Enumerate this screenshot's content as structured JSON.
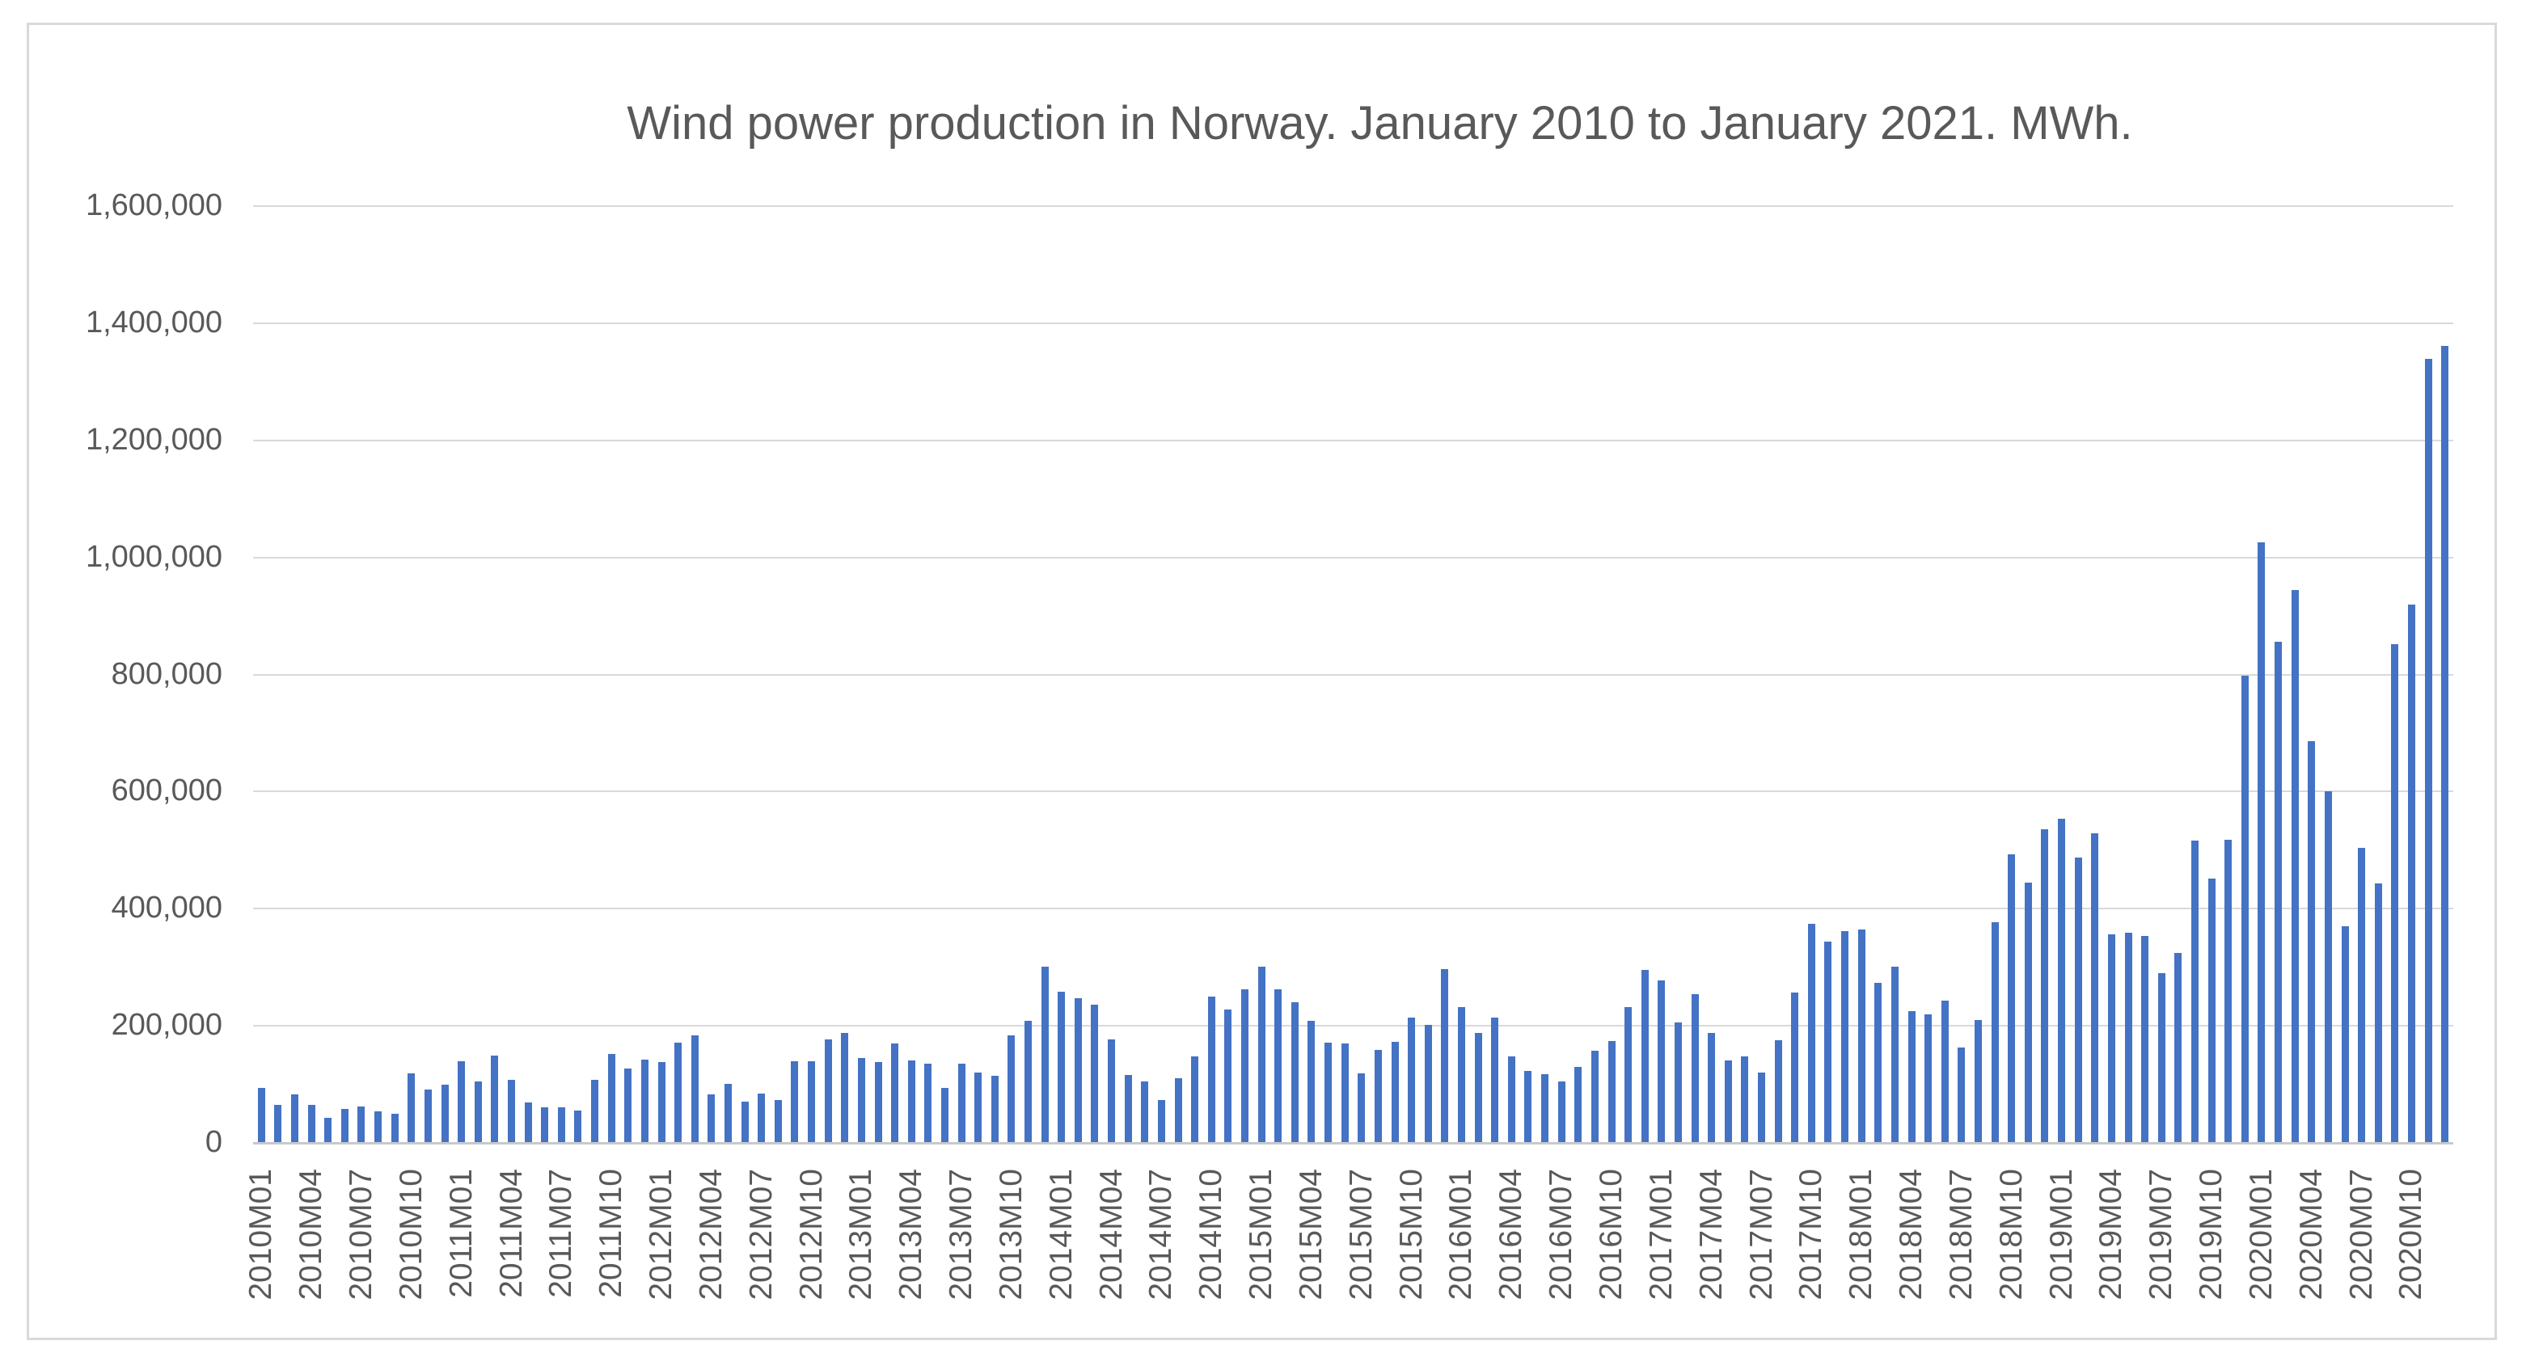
{
  "chart": {
    "title": "Wind power production in Norway. January 2010 to January 2021. MWh."
  },
  "chart_data": {
    "type": "bar",
    "title": "Wind power production in Norway. January 2010 to January 2021. MWh.",
    "xlabel": "",
    "ylabel": "",
    "unit": "MWh",
    "ylim": [
      0,
      1600000
    ],
    "y_tick_step": 200000,
    "grid": "horizontal",
    "legend": "none",
    "bar_color": "#4472C4",
    "gridline_color": "#D9D9D9",
    "axis_line_color": "#C9C9C9",
    "axis_text_color": "#595959",
    "frame_border_color": "#D9D9D9",
    "background_color": "#FFFFFF",
    "y_tick_labels": [
      "1,600,000",
      "1,400,000",
      "1,200,000",
      "1,000,000",
      "800,000",
      "600,000",
      "400,000",
      "200,000",
      "0"
    ],
    "x_tick_labels": [
      "2010M01",
      "2010M04",
      "2010M07",
      "2010M10",
      "2011M01",
      "2011M04",
      "2011M07",
      "2011M10",
      "2012M01",
      "2012M04",
      "2012M07",
      "2012M10",
      "2013M01",
      "2013M04",
      "2013M07",
      "2013M10",
      "2014M01",
      "2014M04",
      "2014M07",
      "2014M10",
      "2015M01",
      "2015M04",
      "2015M07",
      "2015M10",
      "2016M01",
      "2016M04",
      "2016M07",
      "2016M10",
      "2017M01",
      "2017M04",
      "2017M07",
      "2017M10",
      "2018M01",
      "2018M04",
      "2018M07",
      "2018M10",
      "2019M01",
      "2019M04",
      "2019M07",
      "2019M10",
      "2020M01",
      "2020M04",
      "2020M07",
      "2020M10"
    ],
    "x_tick_every": 3,
    "categories": [
      "2010M01",
      "2010M02",
      "2010M03",
      "2010M04",
      "2010M05",
      "2010M06",
      "2010M07",
      "2010M08",
      "2010M09",
      "2010M10",
      "2010M11",
      "2010M12",
      "2011M01",
      "2011M02",
      "2011M03",
      "2011M04",
      "2011M05",
      "2011M06",
      "2011M07",
      "2011M08",
      "2011M09",
      "2011M10",
      "2011M11",
      "2011M12",
      "2012M01",
      "2012M02",
      "2012M03",
      "2012M04",
      "2012M05",
      "2012M06",
      "2012M07",
      "2012M08",
      "2012M09",
      "2012M10",
      "2012M11",
      "2012M12",
      "2013M01",
      "2013M02",
      "2013M03",
      "2013M04",
      "2013M05",
      "2013M06",
      "2013M07",
      "2013M08",
      "2013M09",
      "2013M10",
      "2013M11",
      "2013M12",
      "2014M01",
      "2014M02",
      "2014M03",
      "2014M04",
      "2014M05",
      "2014M06",
      "2014M07",
      "2014M08",
      "2014M09",
      "2014M10",
      "2014M11",
      "2014M12",
      "2015M01",
      "2015M02",
      "2015M03",
      "2015M04",
      "2015M05",
      "2015M06",
      "2015M07",
      "2015M08",
      "2015M09",
      "2015M10",
      "2015M11",
      "2015M12",
      "2016M01",
      "2016M02",
      "2016M03",
      "2016M04",
      "2016M05",
      "2016M06",
      "2016M07",
      "2016M08",
      "2016M09",
      "2016M10",
      "2016M11",
      "2016M12",
      "2017M01",
      "2017M02",
      "2017M03",
      "2017M04",
      "2017M05",
      "2017M06",
      "2017M07",
      "2017M08",
      "2017M09",
      "2017M10",
      "2017M11",
      "2017M12",
      "2018M01",
      "2018M02",
      "2018M03",
      "2018M04",
      "2018M05",
      "2018M06",
      "2018M07",
      "2018M08",
      "2018M09",
      "2018M10",
      "2018M11",
      "2018M12",
      "2019M01",
      "2019M02",
      "2019M03",
      "2019M04",
      "2019M05",
      "2019M06",
      "2019M07",
      "2019M08",
      "2019M09",
      "2019M10",
      "2019M11",
      "2019M12",
      "2020M01",
      "2020M02",
      "2020M03",
      "2020M04",
      "2020M05",
      "2020M06",
      "2020M07",
      "2020M08",
      "2020M09",
      "2020M10",
      "2020M11",
      "2020M12"
    ],
    "values": [
      92000,
      63000,
      81000,
      63000,
      41000,
      56000,
      61000,
      53000,
      48000,
      117000,
      90000,
      98000,
      138000,
      104000,
      148000,
      106000,
      68000,
      59000,
      59000,
      54000,
      106000,
      151000,
      126000,
      141000,
      136000,
      170000,
      182000,
      82000,
      100000,
      69000,
      83000,
      72000,
      138000,
      138000,
      175000,
      186000,
      144000,
      137000,
      169000,
      139000,
      134000,
      92000,
      134000,
      119000,
      113000,
      182000,
      207000,
      300000,
      257000,
      246000,
      235000,
      176000,
      114000,
      104000,
      72000,
      109000,
      147000,
      249000,
      226000,
      261000,
      300000,
      261000,
      239000,
      207000,
      170000,
      169000,
      118000,
      157000,
      171000,
      212000,
      200000,
      295000,
      230000,
      187000,
      212000,
      147000,
      122000,
      116000,
      103000,
      128000,
      156000,
      172000,
      231000,
      294000,
      276000,
      205000,
      253000,
      186000,
      139000,
      147000,
      119000,
      174000,
      256000,
      373000,
      343000,
      360000,
      363000,
      272000,
      300000,
      223000,
      218000,
      241000,
      161000,
      208000,
      376000,
      492000,
      443000,
      534000,
      552000,
      486000,
      527000,
      355000,
      357000,
      352000,
      289000,
      323000,
      515000,
      450000,
      516000,
      797000,
      1024000,
      854000,
      943000,
      685000,
      599000,
      369000,
      503000,
      442000,
      850000,
      918000,
      1338000,
      1360000
    ]
  }
}
